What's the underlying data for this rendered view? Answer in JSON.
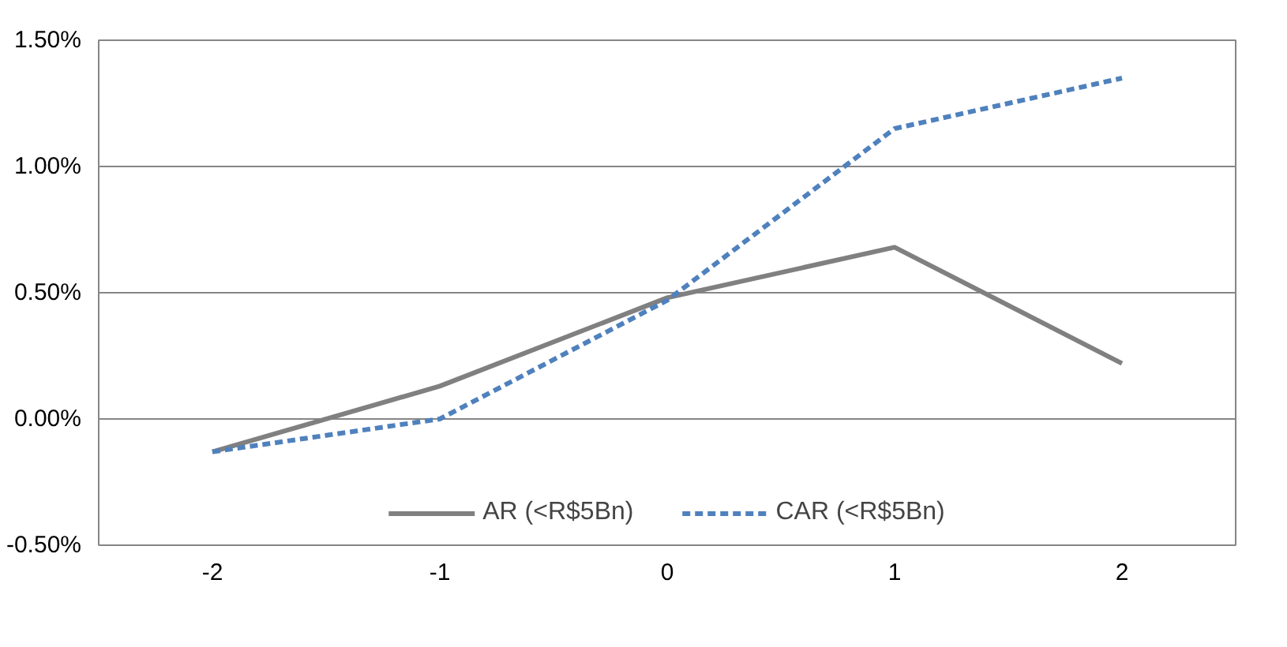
{
  "chart_data": {
    "type": "line",
    "categories": [
      "-2",
      "-1",
      "0",
      "1",
      "2"
    ],
    "series": [
      {
        "name": "AR (<R$5Bn)",
        "color": "#808080",
        "values": [
          -0.13,
          0.13,
          0.48,
          0.68,
          0.22
        ],
        "line_style": "solid"
      },
      {
        "name": "CAR (<R$5Bn)",
        "color": "#4f81bd",
        "values": [
          -0.13,
          0.0,
          0.47,
          1.15,
          1.35
        ],
        "line_style": "dashed"
      }
    ],
    "ylim": [
      -0.5,
      1.5
    ],
    "yticks": [
      {
        "value": -0.5,
        "label": "-0.50%"
      },
      {
        "value": 0,
        "label": "0.00%"
      },
      {
        "value": 0.5,
        "label": "0.50%"
      },
      {
        "value": 1.0,
        "label": "1.00%"
      },
      {
        "value": 1.5,
        "label": "1.50%"
      }
    ],
    "grid": "y",
    "legend": "bottom",
    "marker": "none"
  }
}
